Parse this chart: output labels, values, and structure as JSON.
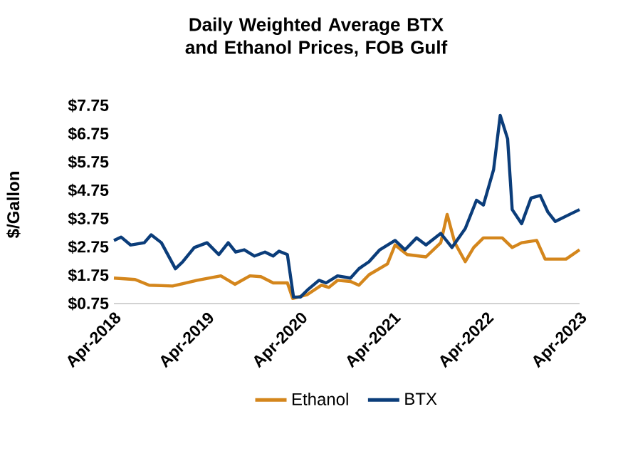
{
  "chart_data": {
    "type": "line",
    "title": "Daily Weighted Average BTX and Ethanol Prices, FOB Gulf",
    "ylabel": "$/Gallon",
    "xlim": [
      "2018-04-01",
      "2023-04-01"
    ],
    "xticks": [
      {
        "value": "2018-04-01",
        "label": "Apr-2018"
      },
      {
        "value": "2019-04-01",
        "label": "Apr-2019"
      },
      {
        "value": "2020-04-01",
        "label": "Apr-2020"
      },
      {
        "value": "2021-04-01",
        "label": "Apr-2021"
      },
      {
        "value": "2022-04-01",
        "label": "Apr-2022"
      },
      {
        "value": "2023-04-01",
        "label": "Apr-2023"
      }
    ],
    "ylim": [
      0.75,
      7.75
    ],
    "yticks": [
      {
        "value": 0.75,
        "label": "$0.75"
      },
      {
        "value": 1.75,
        "label": "$1.75"
      },
      {
        "value": 2.75,
        "label": "$2.75"
      },
      {
        "value": 3.75,
        "label": "$3.75"
      },
      {
        "value": 4.75,
        "label": "$4.75"
      },
      {
        "value": 5.75,
        "label": "$5.75"
      },
      {
        "value": 6.75,
        "label": "$6.75"
      },
      {
        "value": 7.75,
        "label": "$7.75"
      }
    ],
    "legend": "bottom",
    "grid": false,
    "marker": "none",
    "line_style": "solid",
    "series": [
      {
        "name": "Ethanol",
        "color": "#d4861c",
        "x": [
          "2018-04-01",
          "2018-06-23",
          "2018-08-17",
          "2018-11-17",
          "2019-02-21",
          "2019-05-25",
          "2019-07-19",
          "2019-09-16",
          "2019-10-29",
          "2019-12-16",
          "2020-02-10",
          "2020-03-02",
          "2020-04-29",
          "2020-06-23",
          "2020-07-22",
          "2020-08-25",
          "2020-10-15",
          "2020-11-17",
          "2020-12-27",
          "2021-03-09",
          "2021-04-08",
          "2021-05-25",
          "2021-08-07",
          "2021-10-04",
          "2021-10-29",
          "2021-11-28",
          "2022-01-08",
          "2022-02-10",
          "2022-03-20",
          "2022-06-02",
          "2022-07-11",
          "2022-08-17",
          "2022-10-15",
          "2022-11-17",
          "2023-02-07",
          "2023-04-01"
        ],
        "values": [
          1.65,
          1.6,
          1.4,
          1.37,
          1.57,
          1.73,
          1.43,
          1.73,
          1.7,
          1.48,
          1.48,
          0.93,
          1.07,
          1.4,
          1.32,
          1.57,
          1.53,
          1.4,
          1.77,
          2.15,
          2.82,
          2.48,
          2.4,
          2.9,
          3.9,
          2.9,
          2.23,
          2.73,
          3.07,
          3.07,
          2.73,
          2.9,
          2.98,
          2.32,
          2.32,
          2.65
        ]
      },
      {
        "name": "BTX",
        "color": "#0b3d7a",
        "x": [
          "2018-04-01",
          "2018-04-29",
          "2018-06-05",
          "2018-07-29",
          "2018-08-25",
          "2018-10-04",
          "2018-11-28",
          "2018-12-27",
          "2019-02-10",
          "2019-04-01",
          "2019-05-17",
          "2019-06-23",
          "2019-07-22",
          "2019-08-25",
          "2019-10-04",
          "2019-11-14",
          "2019-12-16",
          "2020-01-08",
          "2020-02-10",
          "2020-03-05",
          "2020-04-01",
          "2020-04-29",
          "2020-06-13",
          "2020-07-11",
          "2020-08-25",
          "2020-10-15",
          "2020-11-17",
          "2020-12-27",
          "2021-02-07",
          "2021-04-08",
          "2021-05-17",
          "2021-07-01",
          "2021-08-07",
          "2021-10-04",
          "2021-11-17",
          "2022-01-08",
          "2022-02-21",
          "2022-03-20",
          "2022-04-29",
          "2022-05-25",
          "2022-06-23",
          "2022-07-11",
          "2022-08-17",
          "2022-09-23",
          "2022-10-29",
          "2022-11-28",
          "2022-12-27",
          "2023-02-21",
          "2023-04-01"
        ],
        "values": [
          2.98,
          3.1,
          2.82,
          2.9,
          3.18,
          2.9,
          1.98,
          2.23,
          2.73,
          2.9,
          2.48,
          2.9,
          2.57,
          2.65,
          2.43,
          2.57,
          2.43,
          2.6,
          2.48,
          0.98,
          0.98,
          1.23,
          1.57,
          1.48,
          1.73,
          1.65,
          1.98,
          2.23,
          2.65,
          2.98,
          2.65,
          3.07,
          2.82,
          3.23,
          2.73,
          3.4,
          4.4,
          4.23,
          5.48,
          7.4,
          6.57,
          4.07,
          3.57,
          4.48,
          4.57,
          3.98,
          3.65,
          3.9,
          4.07
        ]
      }
    ]
  }
}
